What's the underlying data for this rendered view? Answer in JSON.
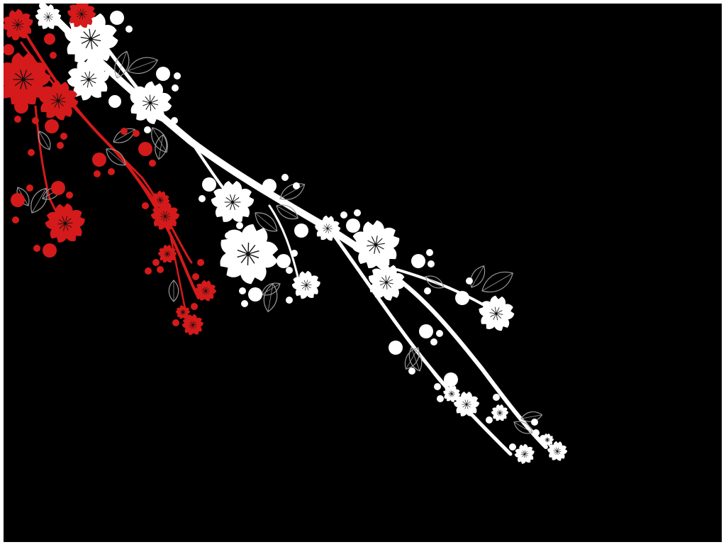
{
  "image": {
    "kind": "decorative-wallpaper",
    "subject": "blossom-branches",
    "background_color": "#000000",
    "frame_color": "#ffffff",
    "white_blossom_color": "#ffffff",
    "red_blossom_color": "#d41a1a",
    "stamen_color": "#111111",
    "leaf_outline_color": "#9a9a9a"
  }
}
